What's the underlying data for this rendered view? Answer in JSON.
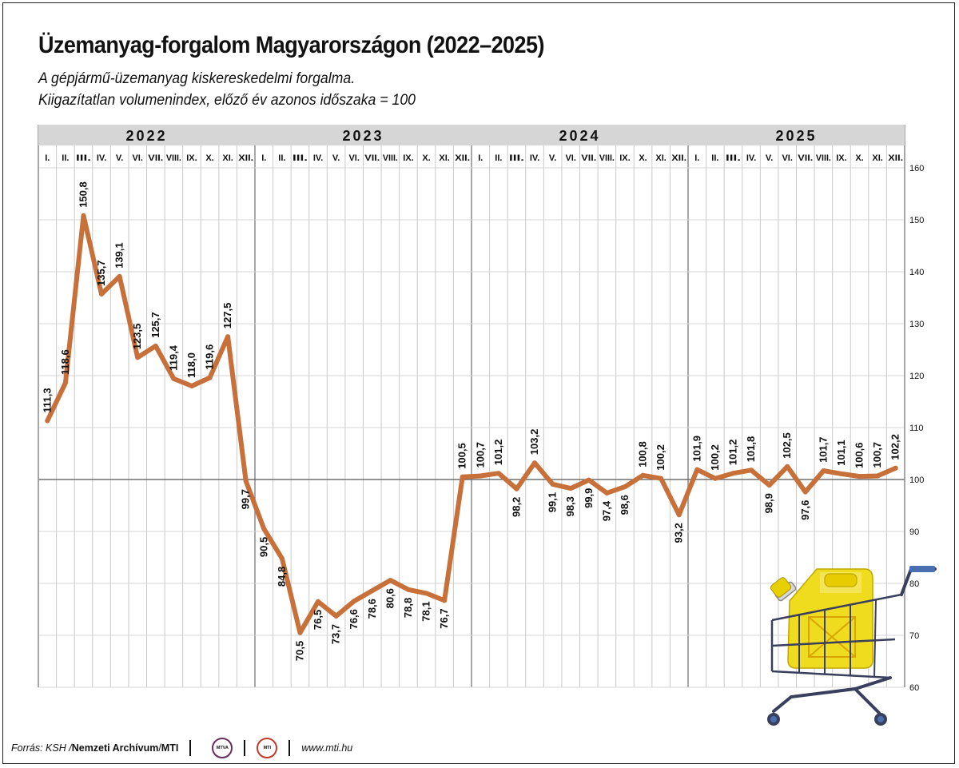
{
  "title": "Üzemanyag-forgalom Magyarországon (2022–2025)",
  "subtitle_line1": "A gépjármű-üzemanyag kiskereskedelmi forgalma.",
  "subtitle_line2": "Kiigazítatlan volumenindex, előző év azonos időszaka = 100",
  "footer": {
    "source_prefix": "Forrás: KSH / ",
    "archive": "Nemzeti Archívum",
    "slash": " / ",
    "agency": "MTI",
    "logo1_text": "MTVA",
    "logo2_text": "MTI",
    "url": "www.mti.hu"
  },
  "colors": {
    "line": "#c8703a",
    "grid": "#c9c9c9",
    "band": "#d6d6d6",
    "reference": "#555555"
  },
  "icons": [
    "shopping-cart-icon",
    "fuel-canister-icon"
  ],
  "chart_data": {
    "type": "line",
    "years": [
      "2022",
      "2023",
      "2024",
      "2025"
    ],
    "months": [
      "I.",
      "II.",
      "III.",
      "IV.",
      "V.",
      "VI.",
      "VII.",
      "VIII.",
      "IX.",
      "X.",
      "XI.",
      "XII."
    ],
    "ylim": [
      60,
      160
    ],
    "yticks": [
      60,
      70,
      80,
      90,
      100,
      110,
      120,
      130,
      140,
      150,
      160
    ],
    "reference_line": 100,
    "grid": true,
    "values": [
      111.3,
      118.6,
      150.8,
      135.7,
      139.1,
      123.5,
      125.7,
      119.4,
      118.0,
      119.6,
      127.5,
      99.7,
      90.5,
      84.8,
      70.5,
      76.5,
      73.7,
      76.6,
      78.6,
      80.6,
      78.8,
      78.1,
      76.7,
      100.5,
      100.7,
      101.2,
      98.2,
      103.2,
      99.1,
      98.3,
      99.9,
      97.4,
      98.6,
      100.8,
      100.2,
      93.2,
      101.9,
      100.2,
      101.2,
      101.8,
      98.9,
      102.5,
      97.6,
      101.7,
      101.1,
      100.6,
      100.7,
      102.2
    ],
    "labels": [
      "111,3",
      "118,6",
      "150,8",
      "135,7",
      "139,1",
      "123,5",
      "125,7",
      "119,4",
      "118,0",
      "119,6",
      "127,5",
      "99,7",
      "90,5",
      "84,8",
      "70,5",
      "76,5",
      "73,7",
      "76,6",
      "78,6",
      "80,6",
      "78,8",
      "78,1",
      "76,7",
      "100,5",
      "100,7",
      "101,2",
      "98,2",
      "103,2",
      "99,1",
      "98,3",
      "99,9",
      "97,4",
      "98,6",
      "100,8",
      "100,2",
      "93,2",
      "101,9",
      "100,2",
      "101,2",
      "101,8",
      "98,9",
      "102,5",
      "97,6",
      "101,7",
      "101,1",
      "100,6",
      "100,7",
      "102,2"
    ],
    "label_position": [
      "above",
      "above",
      "above",
      "above",
      "above",
      "above",
      "above",
      "above",
      "above",
      "above",
      "above",
      "below",
      "below",
      "below",
      "below",
      "below",
      "below",
      "below",
      "below",
      "below",
      "below",
      "below",
      "below",
      "above",
      "above",
      "above",
      "below",
      "above",
      "below",
      "below",
      "below",
      "below",
      "below",
      "above",
      "above",
      "below",
      "above",
      "above",
      "above",
      "above",
      "below",
      "above",
      "below",
      "above",
      "above",
      "above",
      "above",
      "above"
    ]
  }
}
